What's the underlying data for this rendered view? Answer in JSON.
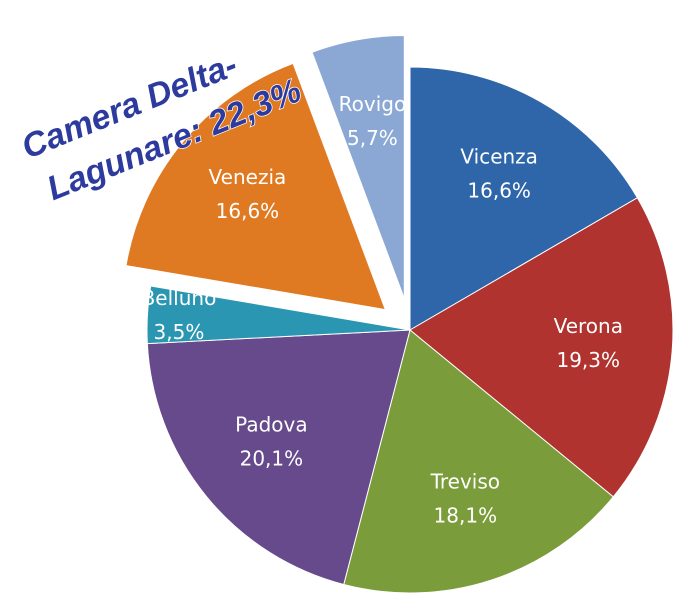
{
  "chart_data": {
    "type": "pie",
    "categories": [
      "Vicenza",
      "Verona",
      "Treviso",
      "Padova",
      "Belluno",
      "Venezia",
      "Rovigo"
    ],
    "values": [
      16.6,
      19.3,
      18.1,
      20.1,
      3.5,
      16.6,
      5.7
    ],
    "value_labels": [
      "16,6%",
      "19,3%",
      "18,1%",
      "20,1%",
      "3,5%",
      "16,6%",
      "5,7%"
    ],
    "colors": [
      "#2f65a9",
      "#b0332f",
      "#7b9c3a",
      "#664a8c",
      "#2a96b1",
      "#e07a22",
      "#8ba8d5"
    ],
    "exploded": [
      false,
      false,
      false,
      false,
      false,
      true,
      true
    ],
    "annotation": [
      "Camera Delta-",
      "Lagunare: 22,3%"
    ]
  }
}
